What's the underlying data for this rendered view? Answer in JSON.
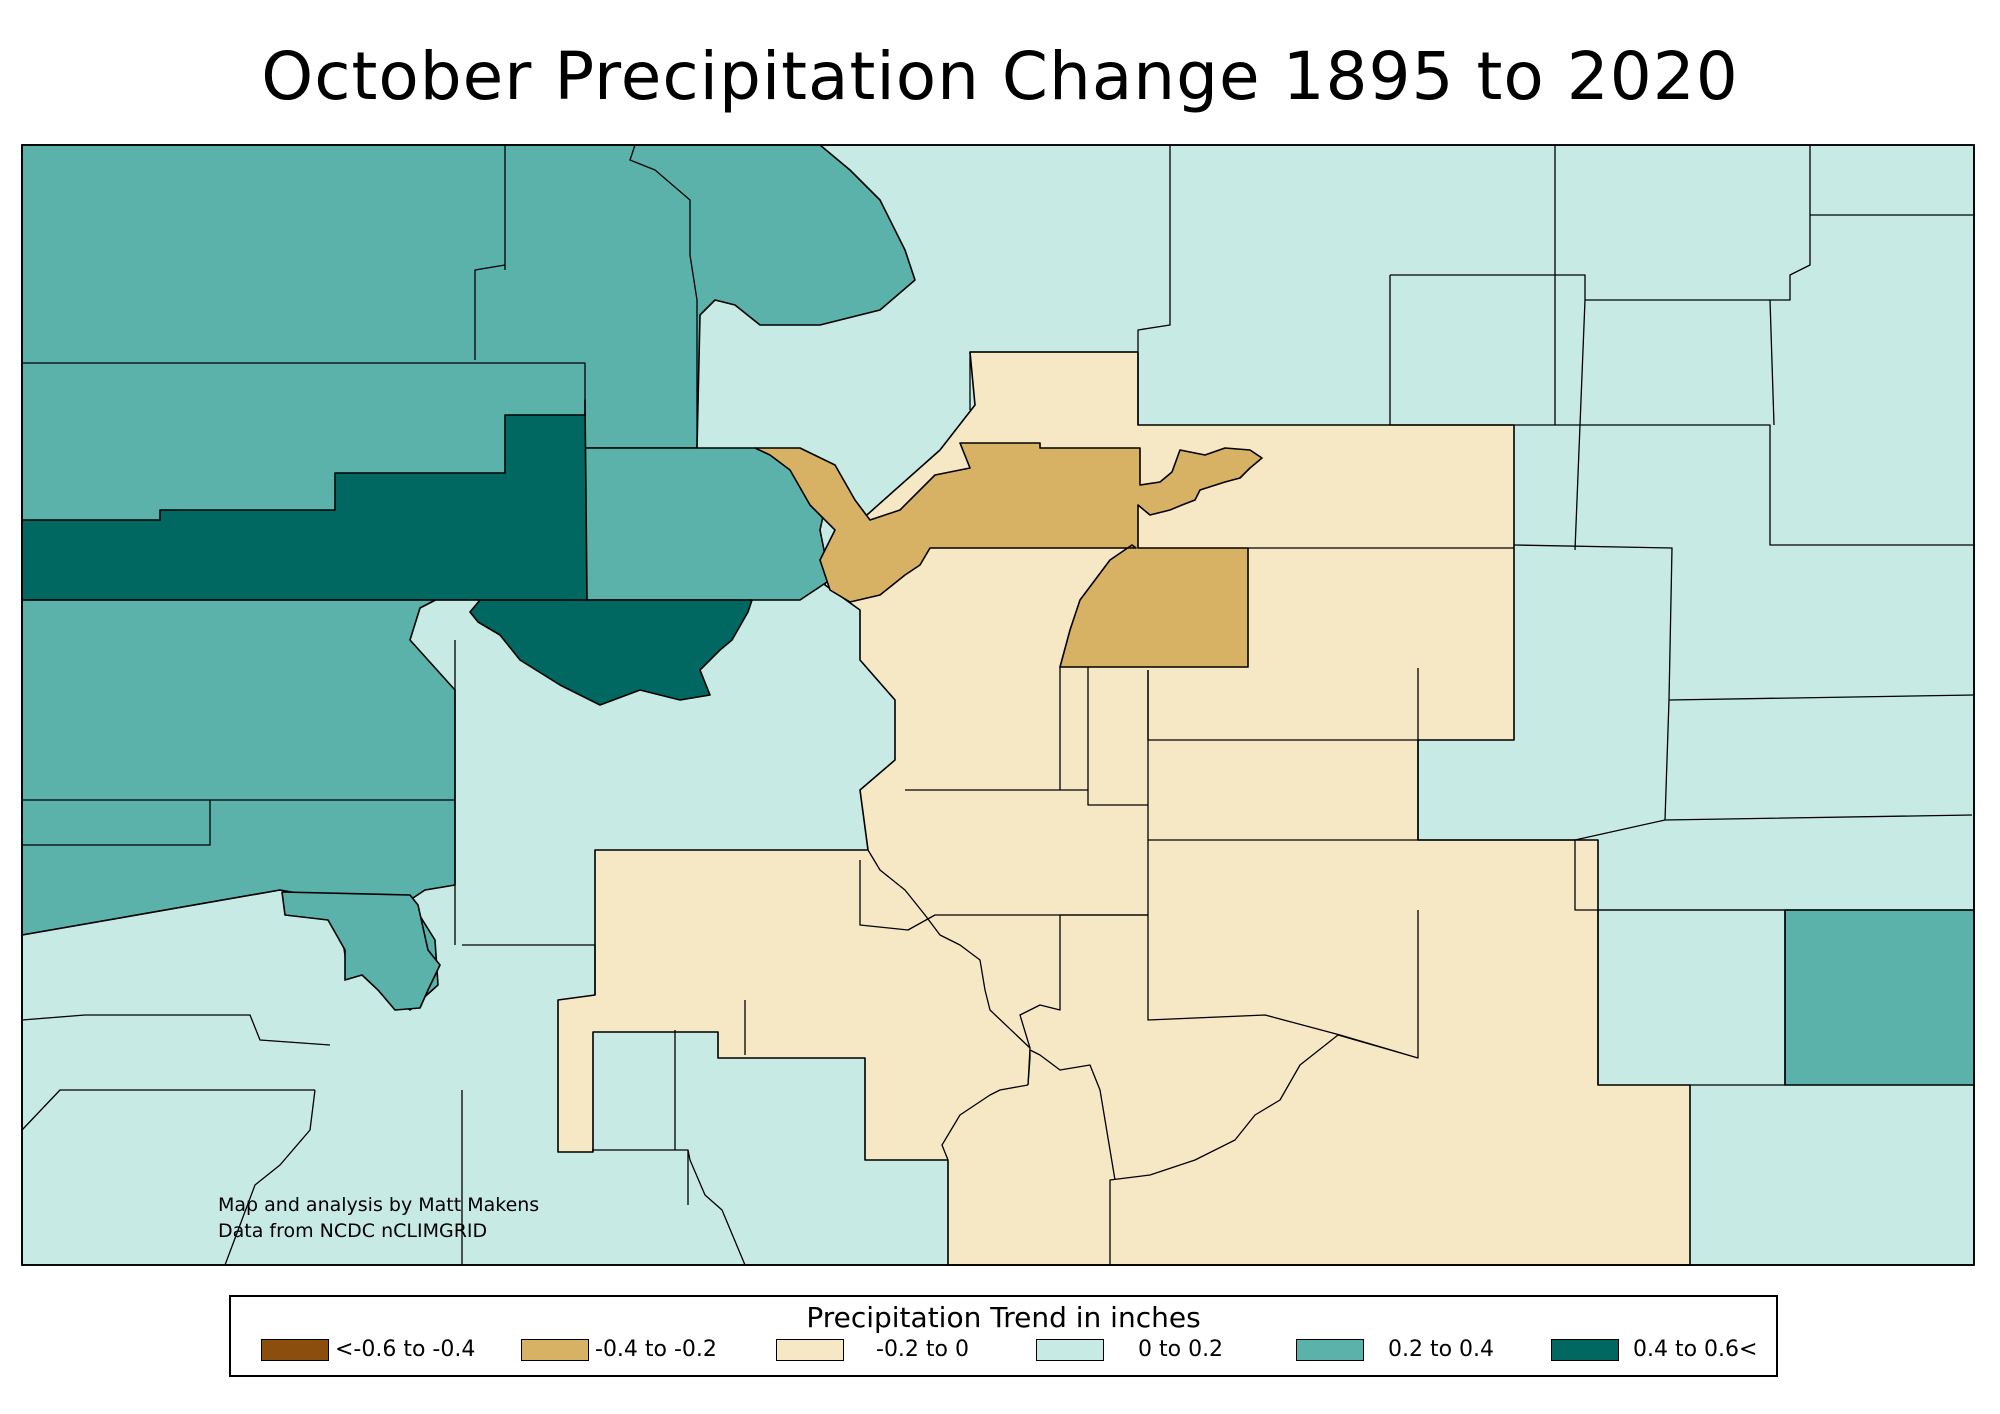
{
  "title": "October Precipitation Change 1895 to 2020",
  "credit": {
    "line1": "Map and analysis by Matt Makens",
    "line2": "Data from NCDC nCLIMGRID"
  },
  "legend": {
    "title": "Precipitation Trend in inches",
    "items": [
      {
        "label": "<-0.6 to -0.4",
        "color": "#8b4e0c"
      },
      {
        "label": "-0.4 to -0.2",
        "color": "#d8b264"
      },
      {
        "label": "-0.2 to 0",
        "color": "#f6e8c4"
      },
      {
        "label": "0 to 0.2",
        "color": "#c8eae4"
      },
      {
        "label": "0.2 to 0.4",
        "color": "#5ab2ab"
      },
      {
        "label": "0.4 to 0.6<",
        "color": "#006860"
      }
    ]
  }
}
